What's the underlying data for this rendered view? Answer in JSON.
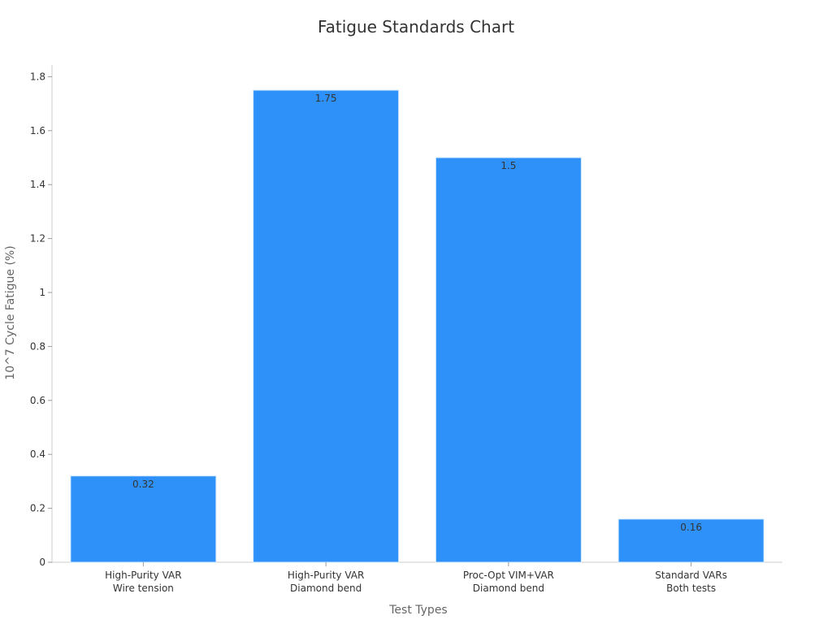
{
  "chart_data": {
    "type": "bar",
    "title": "Fatigue Standards Chart",
    "xlabel": "Test Types",
    "ylabel": "10^7 Cycle Fatigue (%)",
    "categories": [
      [
        "High-Purity VAR",
        "Wire tension"
      ],
      [
        "High-Purity VAR",
        "Diamond bend"
      ],
      [
        "Proc-Opt VIM+VAR",
        "Diamond bend"
      ],
      [
        "Standard VARs",
        "Both tests"
      ]
    ],
    "values": [
      0.32,
      1.75,
      1.5,
      0.16
    ],
    "data_labels": [
      "0.32",
      "1.75",
      "1.5",
      "0.16"
    ],
    "yticks": [
      0,
      0.2,
      0.4,
      0.6,
      0.8,
      1,
      1.2,
      1.4,
      1.6,
      1.8
    ],
    "ytick_labels": [
      "0",
      "0.2",
      "0.4",
      "0.6",
      "0.8",
      "1",
      "1.2",
      "1.4",
      "1.6",
      "1.8"
    ],
    "ylim": [
      0,
      1.84
    ],
    "grid": false,
    "legend": "none",
    "bar_color": "#2e91fa"
  }
}
